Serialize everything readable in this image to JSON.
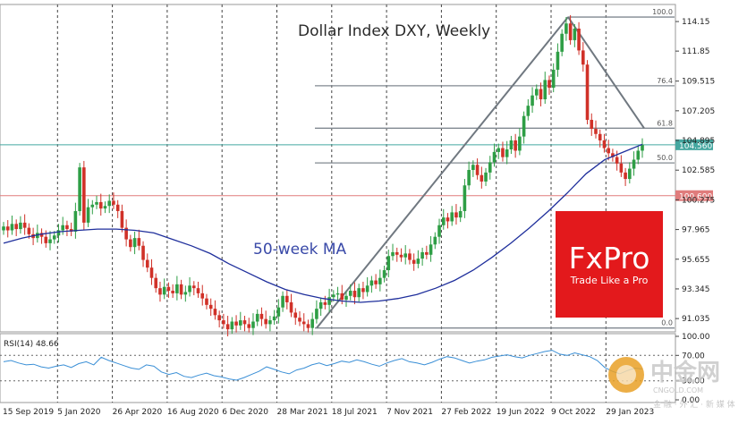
{
  "chart_data": {
    "type": "candlestick",
    "title": "Dollar Index DXY, Weekly",
    "ma_label": "50-week MA",
    "price_axis": {
      "ticks": [
        "114.15",
        "111.85",
        "109.515",
        "107.205",
        "104.895",
        "102.585",
        "100.275",
        "97.965",
        "95.655",
        "93.345",
        "91.035"
      ],
      "range": [
        90.0,
        115.2
      ]
    },
    "time_axis": {
      "labels": [
        "15 Sep 2019",
        "5 Jan 2020",
        "26 Apr 2020",
        "16 Aug 2020",
        "6 Dec 2020",
        "28 Mar 2021",
        "18 Jul 2021",
        "7 Nov 2021",
        "27 Feb 2022",
        "19 Jun 2022",
        "9 Oct 2022",
        "29 Jan 2023"
      ]
    },
    "fibonacci": [
      {
        "label": "100.0",
        "price": 114.5
      },
      {
        "label": "76.4",
        "price": 109.15
      },
      {
        "label": "61.8",
        "price": 105.85
      },
      {
        "label": "50.0",
        "price": 103.15
      },
      {
        "label": "0.0",
        "price": 90.3
      }
    ],
    "current_price": {
      "label": "104.560",
      "price": 104.56
    },
    "support_level": {
      "label": "100.600",
      "price": 100.6
    },
    "ohlc_closes": [
      98.2,
      97.9,
      98.4,
      98.0,
      98.5,
      98.1,
      97.6,
      97.3,
      97.7,
      97.4,
      96.9,
      97.2,
      97.5,
      97.9,
      98.3,
      98.0,
      97.8,
      99.4,
      102.8,
      98.5,
      99.7,
      99.9,
      100.1,
      99.6,
      99.8,
      100.2,
      99.9,
      99.4,
      98.1,
      97.2,
      96.6,
      97.3,
      96.7,
      95.6,
      95.0,
      94.2,
      93.4,
      92.9,
      93.5,
      93.2,
      93.0,
      93.7,
      92.9,
      93.1,
      93.6,
      93.4,
      93.0,
      92.6,
      92.1,
      91.8,
      91.3,
      90.9,
      90.6,
      90.2,
      90.8,
      90.5,
      90.9,
      90.6,
      90.3,
      90.8,
      91.4,
      91.0,
      90.6,
      90.9,
      91.2,
      91.9,
      92.8,
      92.3,
      91.5,
      91.1,
      90.8,
      90.6,
      90.3,
      91.0,
      91.8,
      92.3,
      92.1,
      92.7,
      92.9,
      93.0,
      92.5,
      92.8,
      93.2,
      92.7,
      93.4,
      93.1,
      93.6,
      94.0,
      93.7,
      94.2,
      94.8,
      95.9,
      96.2,
      96.0,
      95.8,
      96.1,
      95.6,
      95.3,
      95.7,
      96.2,
      96.0,
      96.8,
      97.4,
      98.3,
      98.9,
      98.6,
      99.3,
      98.9,
      99.4,
      101.4,
      102.6,
      103.0,
      102.2,
      101.7,
      102.4,
      103.2,
      104.0,
      104.3,
      103.6,
      104.2,
      104.9,
      104.1,
      105.2,
      106.8,
      107.6,
      108.4,
      108.9,
      108.1,
      109.6,
      109.0,
      110.4,
      111.8,
      113.2,
      114.0,
      112.7,
      113.6,
      111.9,
      110.8,
      106.5,
      105.8,
      105.4,
      104.9,
      104.3,
      103.9,
      103.6,
      103.1,
      102.4,
      101.9,
      102.7,
      103.4,
      104.1,
      104.56
    ],
    "ma50": [
      96.9,
      97.3,
      97.6,
      97.8,
      97.9,
      98.0,
      98.0,
      97.9,
      97.7,
      97.2,
      96.7,
      96.1,
      95.3,
      94.6,
      93.9,
      93.3,
      92.9,
      92.6,
      92.4,
      92.3,
      92.4,
      92.6,
      92.9,
      93.4,
      94.0,
      94.8,
      95.8,
      96.9,
      98.1,
      99.4,
      100.8,
      102.3,
      103.4,
      104.0,
      104.6
    ],
    "rsi": {
      "label": "RSI(14)",
      "value": "48.66",
      "ticks": [
        "100.00",
        "70.00",
        "30.00",
        "0.00"
      ],
      "levels": [
        30,
        70
      ],
      "series": [
        60,
        62,
        58,
        55,
        56,
        52,
        50,
        53,
        55,
        51,
        57,
        60,
        55,
        67,
        62,
        58,
        54,
        50,
        48,
        55,
        53,
        44,
        40,
        43,
        37,
        35,
        39,
        42,
        38,
        36,
        33,
        31,
        35,
        40,
        45,
        52,
        48,
        44,
        41,
        47,
        50,
        55,
        58,
        54,
        57,
        61,
        59,
        63,
        60,
        56,
        53,
        58,
        62,
        65,
        60,
        58,
        55,
        59,
        64,
        68,
        66,
        62,
        58,
        61,
        63,
        67,
        69,
        71,
        68,
        66,
        70,
        73,
        76,
        78,
        72,
        70,
        74,
        71,
        68,
        62,
        51,
        45,
        41,
        46,
        50,
        48.66
      ]
    }
  },
  "branding": {
    "fxpro_logo": "FxPro",
    "fxpro_tagline": "Trade Like a Pro",
    "watermark_cn": "中金网",
    "watermark_en": "CNGOLD.COM",
    "watermark_sub": "金 融 · 外 汇 · 新 媒 体",
    "brand_red": "#e3191c"
  },
  "colors": {
    "bull": "#2e9e45",
    "bear": "#d03128",
    "ma": "#1f2f9c",
    "fib": "#808890",
    "current": "#45a7a0",
    "support": "#e07c7c"
  }
}
